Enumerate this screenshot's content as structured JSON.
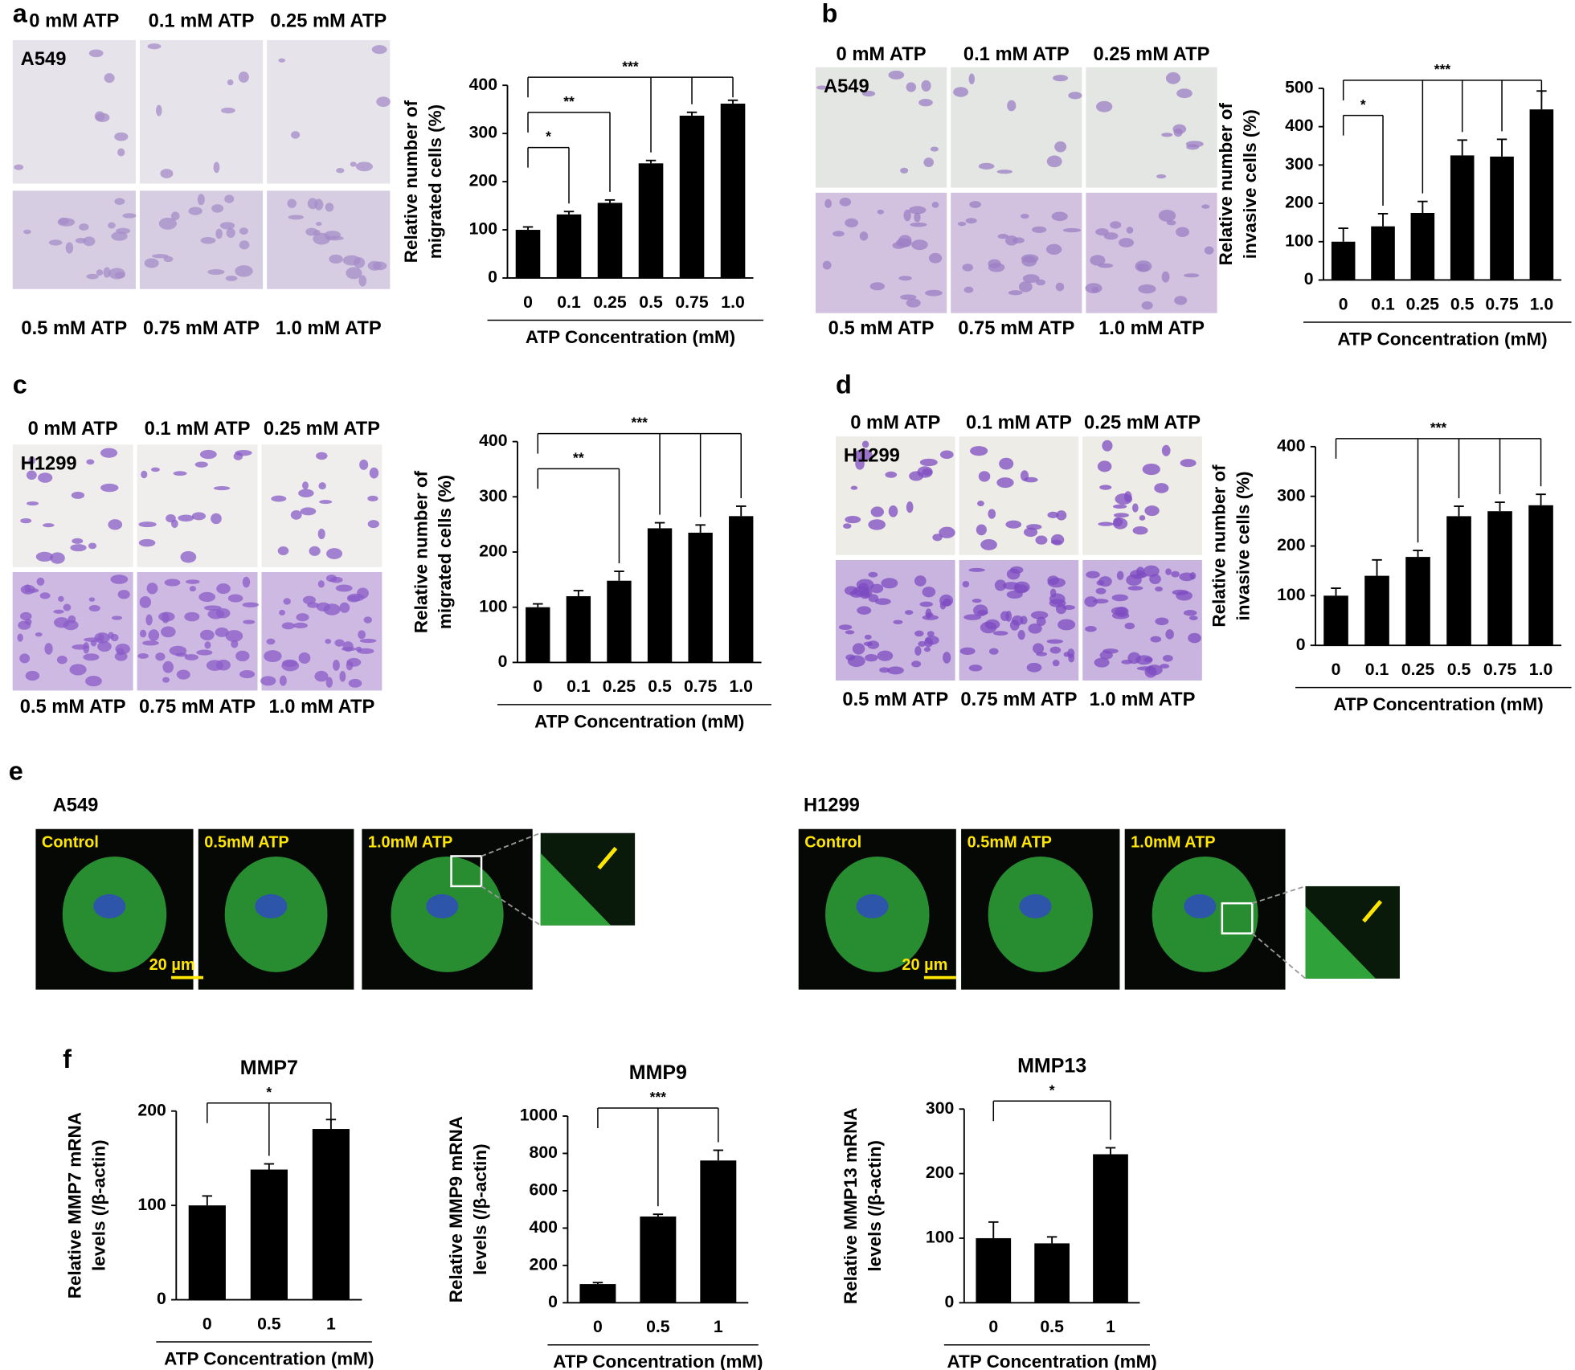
{
  "panels": {
    "a": {
      "letter": "a",
      "cell": "A549",
      "top": [
        "0 mM ATP",
        "0.1 mM ATP",
        "0.25 mM ATP"
      ],
      "bottom": [
        "0.5 mM ATP",
        "0.75 mM ATP",
        "1.0 mM ATP"
      ]
    },
    "b": {
      "letter": "b",
      "cell": "A549",
      "top": [
        "0 mM ATP",
        "0.1 mM ATP",
        "0.25 mM ATP"
      ],
      "bottom": [
        "0.5 mM ATP",
        "0.75 mM ATP",
        "1.0 mM ATP"
      ]
    },
    "c": {
      "letter": "c",
      "cell": "H1299",
      "top": [
        "0 mM ATP",
        "0.1 mM ATP",
        "0.25 mM ATP"
      ],
      "bottom": [
        "0.5 mM ATP",
        "0.75 mM ATP",
        "1.0 mM ATP"
      ]
    },
    "d": {
      "letter": "d",
      "cell": "H1299",
      "top": [
        "0 mM ATP",
        "0.1 mM ATP",
        "0.25 mM ATP"
      ],
      "bottom": [
        "0.5 mM ATP",
        "0.75 mM ATP",
        "1.0 mM ATP"
      ]
    },
    "e": {
      "letter": "e",
      "groups": [
        {
          "cell": "A549",
          "labels": [
            "Control",
            "0.5mM ATP",
            "1.0mM ATP"
          ],
          "scale": "20 µm"
        },
        {
          "cell": "H1299",
          "labels": [
            "Control",
            "0.5mM ATP",
            "1.0mM ATP"
          ],
          "scale": "20 µm"
        }
      ]
    },
    "f": {
      "letter": "f"
    }
  },
  "chart_data": [
    {
      "type": "bar",
      "categories": [
        "0",
        "0.1",
        "0.25",
        "0.5",
        "0.75",
        "1.0"
      ],
      "values": [
        100,
        132,
        156,
        238,
        337,
        362
      ],
      "errors": [
        6,
        6,
        6,
        6,
        7,
        7
      ],
      "color": "#000000",
      "ylim": [
        0,
        400
      ],
      "yticks": [
        0,
        100,
        200,
        300,
        400
      ],
      "ylabel": [
        "Relative number of",
        "migrated cells (%)"
      ],
      "xlabel": "ATP Concentration (mM)",
      "significance": [
        {
          "label": "*",
          "groups": [
            "0",
            "0.1"
          ]
        },
        {
          "label": "**",
          "groups": [
            "0",
            "0.25"
          ]
        },
        {
          "label": "***",
          "groups": [
            "0",
            "0.5",
            "0.75",
            "1.0"
          ]
        }
      ]
    },
    {
      "type": "bar",
      "categories": [
        "0",
        "0.1",
        "0.25",
        "0.5",
        "0.75",
        "1.0"
      ],
      "values": [
        100,
        140,
        175,
        325,
        322,
        445
      ],
      "errors": [
        35,
        33,
        30,
        40,
        45,
        48
      ],
      "color": "#000000",
      "ylim": [
        0,
        500
      ],
      "yticks": [
        0,
        100,
        200,
        300,
        400,
        500
      ],
      "ylabel": [
        "Relative number of",
        "invasive cells (%)"
      ],
      "xlabel": "ATP Concentration (mM)",
      "significance": [
        {
          "label": "*",
          "groups": [
            "0",
            "0.1"
          ]
        },
        {
          "label": "***",
          "groups": [
            "0",
            "0.25",
            "0.5",
            "0.75",
            "1.0"
          ]
        }
      ]
    },
    {
      "type": "bar",
      "categories": [
        "0",
        "0.1",
        "0.25",
        "0.5",
        "0.75",
        "1.0"
      ],
      "values": [
        100,
        120,
        148,
        243,
        235,
        265
      ],
      "errors": [
        6,
        10,
        17,
        10,
        14,
        18
      ],
      "color": "#000000",
      "ylim": [
        0,
        400
      ],
      "yticks": [
        0,
        100,
        200,
        300,
        400
      ],
      "ylabel": [
        "Relative number of",
        "migrated cells (%)"
      ],
      "xlabel": "ATP Concentration (mM)",
      "significance": [
        {
          "label": "**",
          "groups": [
            "0",
            "0.25"
          ]
        },
        {
          "label": "***",
          "groups": [
            "0",
            "0.5",
            "0.75",
            "1.0"
          ]
        }
      ]
    },
    {
      "type": "bar",
      "categories": [
        "0",
        "0.1",
        "0.25",
        "0.5",
        "0.75",
        "1.0"
      ],
      "values": [
        100,
        140,
        178,
        260,
        270,
        282
      ],
      "errors": [
        15,
        32,
        13,
        20,
        18,
        22
      ],
      "color": "#000000",
      "ylim": [
        0,
        400
      ],
      "yticks": [
        0,
        100,
        200,
        300,
        400
      ],
      "ylabel": [
        "Relative number of",
        "invasive cells (%)"
      ],
      "xlabel": "ATP Concentration (mM)",
      "significance": [
        {
          "label": "***",
          "groups": [
            "0",
            "0.25",
            "0.5",
            "0.75",
            "1.0"
          ]
        }
      ]
    },
    {
      "type": "bar",
      "title": "MMP7",
      "categories": [
        "0",
        "0.5",
        "1"
      ],
      "values": [
        100,
        138,
        181
      ],
      "errors": [
        10,
        6,
        10
      ],
      "color": "#000000",
      "ylim": [
        0,
        200
      ],
      "yticks": [
        0,
        100,
        200
      ],
      "ylabel": [
        "Relative MMP7 mRNA",
        "levels (/β-actin)"
      ],
      "xlabel": "ATP Concentration (mM)",
      "significance": [
        {
          "label": "*",
          "groups": [
            "0",
            "0.5",
            "1"
          ]
        }
      ]
    },
    {
      "type": "bar",
      "title": "MMP9",
      "categories": [
        "0",
        "0.5",
        "1"
      ],
      "values": [
        100,
        462,
        762
      ],
      "errors": [
        8,
        12,
        55
      ],
      "color": "#000000",
      "ylim": [
        0,
        1000
      ],
      "yticks": [
        0,
        200,
        400,
        600,
        800,
        1000
      ],
      "ylabel": [
        "Relative MMP9 mRNA",
        "levels (/β-actin)"
      ],
      "xlabel": "ATP Concentration (mM)",
      "significance": [
        {
          "label": "***",
          "groups": [
            "0",
            "0.5",
            "1"
          ]
        }
      ]
    },
    {
      "type": "bar",
      "title": "MMP13",
      "categories": [
        "0",
        "0.5",
        "1"
      ],
      "values": [
        100,
        92,
        230
      ],
      "errors": [
        25,
        10,
        10
      ],
      "color": "#000000",
      "ylim": [
        0,
        300
      ],
      "yticks": [
        0,
        100,
        200,
        300
      ],
      "ylabel": [
        "Relative MMP13 mRNA",
        "levels (/β-actin)"
      ],
      "xlabel": "ATP Concentration (mM)",
      "significance": [
        {
          "label": "*",
          "groups": [
            "0",
            "1"
          ]
        }
      ]
    }
  ]
}
